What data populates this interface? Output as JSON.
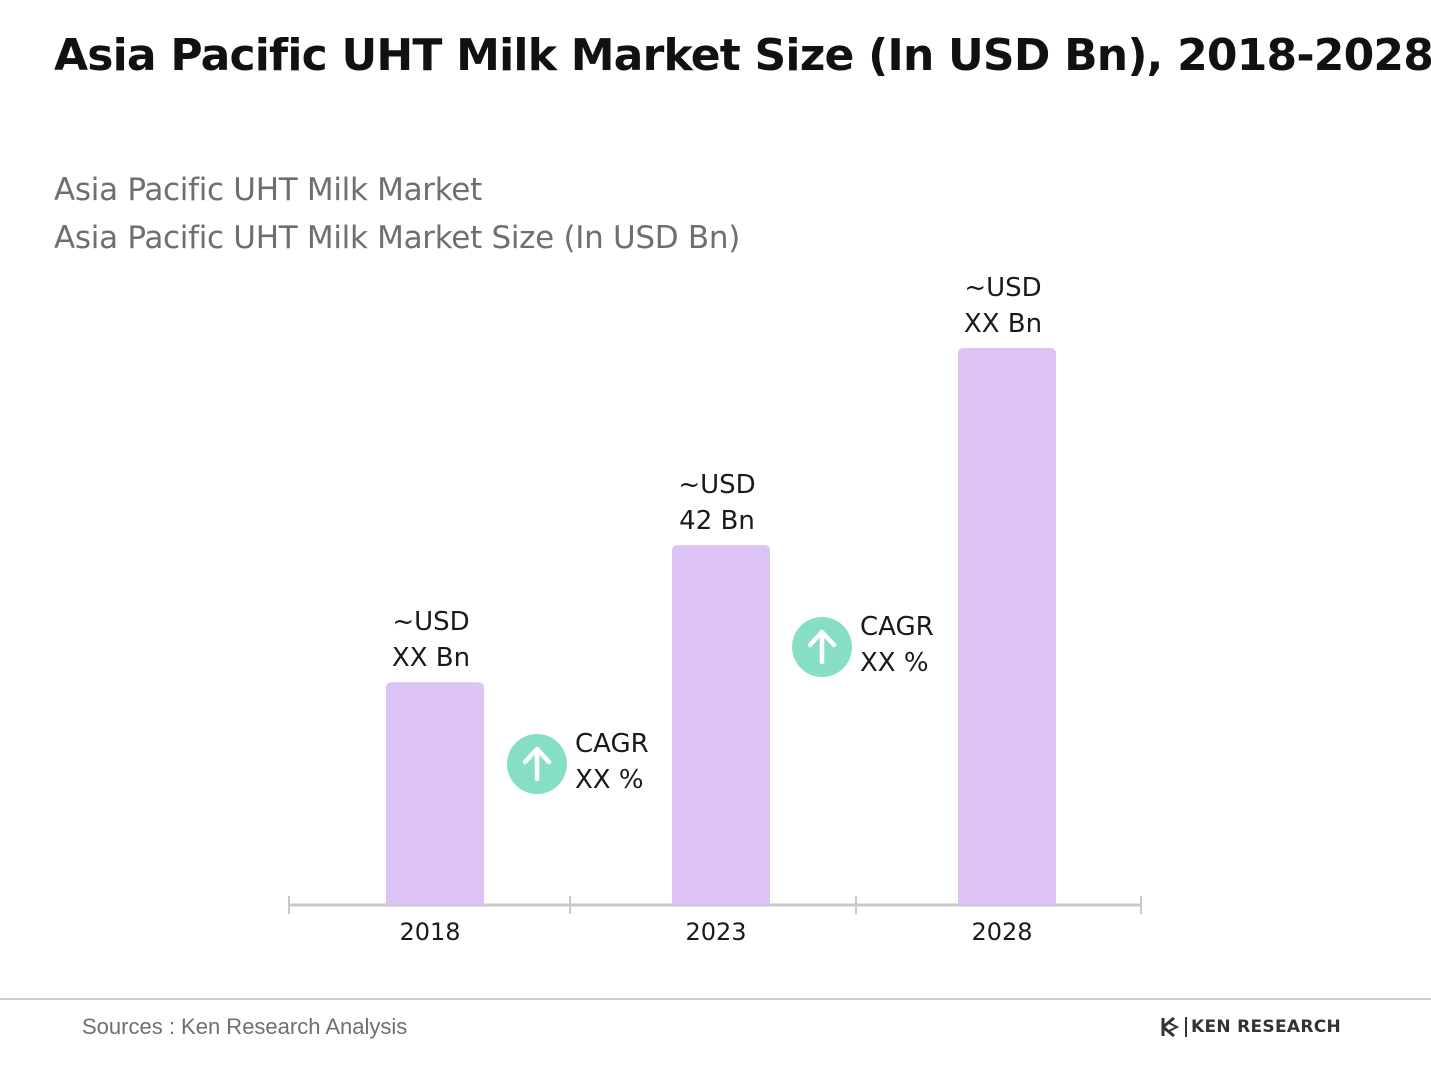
{
  "title": "Asia Pacific UHT Milk Market Size (In USD Bn), 2018-2028",
  "subtitle_1": "Asia Pacific UHT Milk Market",
  "subtitle_2": "Asia Pacific UHT Milk Market Size (In USD Bn)",
  "source": "Sources : Ken Research Analysis",
  "logo_text": "KEN RESEARCH",
  "colors": {
    "bar": "#dcc2f5",
    "cagr_circle": "#86dfc5",
    "axis": "#c8c8c8"
  },
  "chart_data": {
    "type": "bar",
    "title": "Asia Pacific UHT Milk Market Size (In USD Bn), 2018-2028",
    "categories": [
      "2018",
      "2023",
      "2028"
    ],
    "values": [
      26,
      42,
      65
    ],
    "value_labels": [
      [
        "~USD",
        "XX Bn"
      ],
      [
        "~USD",
        "42 Bn"
      ],
      [
        "~USD",
        "XX Bn"
      ]
    ],
    "annotations": [
      {
        "between": [
          "2018",
          "2023"
        ],
        "icon": "arrow-up-icon",
        "lines": [
          "CAGR",
          "XX %"
        ]
      },
      {
        "between": [
          "2023",
          "2028"
        ],
        "icon": "arrow-up-icon",
        "lines": [
          "CAGR",
          "XX %"
        ]
      }
    ],
    "ylim": [
      0,
      65
    ],
    "grid": false,
    "legend": "none"
  }
}
